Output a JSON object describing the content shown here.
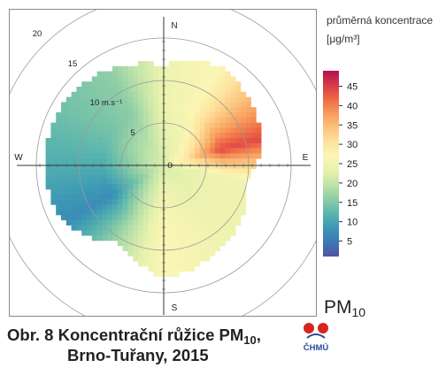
{
  "chart_data": {
    "type": "heatmap",
    "subtype": "polar-pollution-rose",
    "pollutant": "PM10",
    "caption_line1": "Obr. 8  Koncentrační růžice PM",
    "caption_sub": "10",
    "caption_comma": ",",
    "caption_line2": "Brno-Tuřany, 2015",
    "legend_title_line1": "průměrná koncentrace",
    "legend_title_line2": "[μg/m³]",
    "legend_range": [
      1,
      49
    ],
    "legend_ticks": [
      "5",
      "10",
      "15",
      "20",
      "25",
      "30",
      "35",
      "40",
      "45"
    ],
    "radial_unit_label": "10 m.s⁻¹",
    "ring_labels": [
      "0",
      "5",
      "15",
      "20"
    ],
    "rings": [
      5,
      10,
      15,
      20
    ],
    "directions": {
      "N": "N",
      "E": "E",
      "S": "S",
      "W": "W"
    },
    "pm_label": "PM",
    "pm_sub": "10",
    "colorscale": [
      "#5052a4",
      "#3d77b7",
      "#3b98b5",
      "#5ab5ad",
      "#8ccca6",
      "#bde3a9",
      "#e8f2ad",
      "#fbf5b4",
      "#fde49f",
      "#fcc47d",
      "#f89c5d",
      "#ee6a45",
      "#d9394a",
      "#b2124a"
    ],
    "wind_speed_range": [
      0,
      15
    ],
    "concentration_profile": [
      {
        "direction_deg": 0,
        "concentration": 24,
        "max_speed": 11.8
      },
      {
        "direction_deg": 30,
        "concentration": 27,
        "max_speed": 13.5
      },
      {
        "direction_deg": 60,
        "concentration": 38,
        "max_speed": 12.5
      },
      {
        "direction_deg": 75,
        "concentration": 44,
        "max_speed": 12.0
      },
      {
        "direction_deg": 100,
        "concentration": 25,
        "max_speed": 10.0
      },
      {
        "direction_deg": 135,
        "concentration": 24,
        "max_speed": 11.5
      },
      {
        "direction_deg": 180,
        "concentration": 27,
        "max_speed": 13.2
      },
      {
        "direction_deg": 210,
        "concentration": 18,
        "max_speed": 10.5
      },
      {
        "direction_deg": 240,
        "concentration": 7,
        "max_speed": 13.5
      },
      {
        "direction_deg": 270,
        "concentration": 11,
        "max_speed": 14.0
      },
      {
        "direction_deg": 300,
        "concentration": 14,
        "max_speed": 14.0
      },
      {
        "direction_deg": 330,
        "concentration": 16,
        "max_speed": 13.0
      }
    ],
    "center_concentration": 22,
    "grid": true
  },
  "logo": {
    "text": "ČHMÚ",
    "dot_color": "#d7261e",
    "accent_color": "#2b4c9b"
  }
}
